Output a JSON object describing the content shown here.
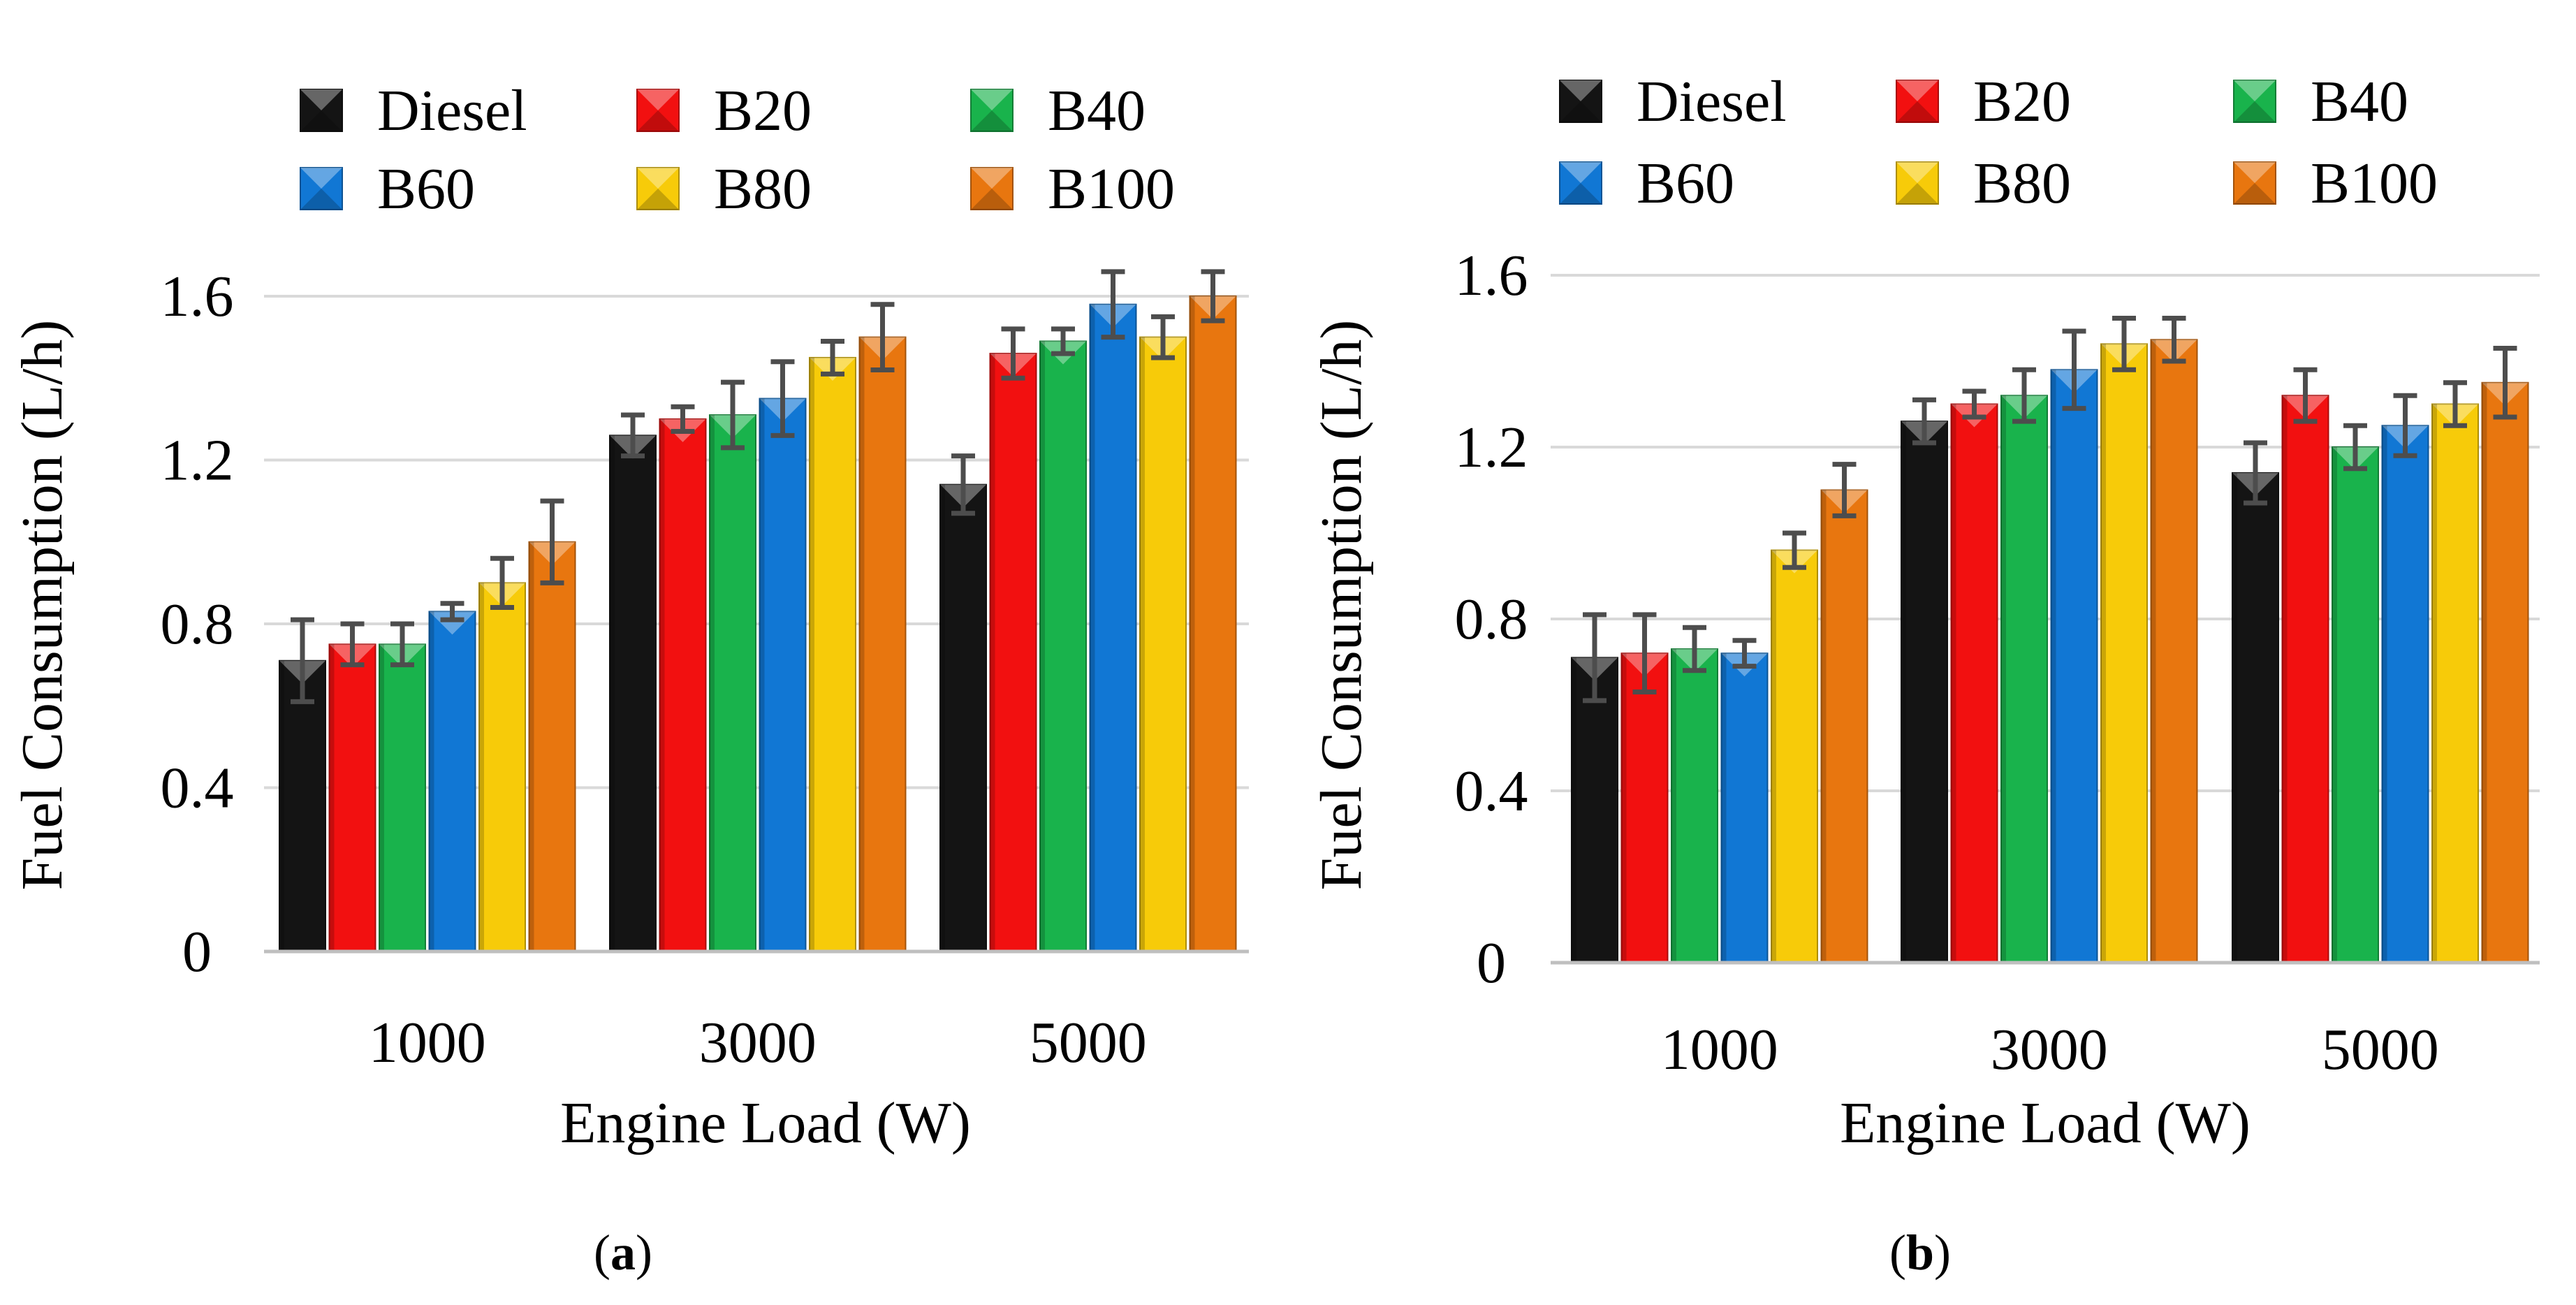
{
  "colors": {
    "Diesel": "#141414",
    "B20": "#f21010",
    "B40": "#19b34c",
    "B60": "#1177d4",
    "B80": "#f7cb09",
    "B100": "#e8760f",
    "grid": "#d9d9d9",
    "axis": "#bfbfbf",
    "errorbar": "#4d4d4d"
  },
  "chart_data": [
    {
      "type": "bar",
      "panel": "a",
      "caption_letter": "a",
      "title": "",
      "xlabel": "Engine Load (W)",
      "ylabel": "Fuel Consumption (L/h)",
      "ylim": [
        0,
        1.6
      ],
      "yticks": [
        "0",
        "0.4",
        "0.8",
        "1.2",
        "1.6"
      ],
      "ytick_values": [
        0,
        0.4,
        0.8,
        1.2,
        1.6
      ],
      "grid": true,
      "legend_position": "top",
      "categories": [
        "1000",
        "3000",
        "5000"
      ],
      "series": [
        {
          "name": "Diesel",
          "values": [
            0.71,
            1.26,
            1.14
          ],
          "errors": [
            0.1,
            0.05,
            0.07
          ]
        },
        {
          "name": "B20",
          "values": [
            0.75,
            1.3,
            1.46
          ],
          "errors": [
            0.05,
            0.03,
            0.06
          ]
        },
        {
          "name": "B40",
          "values": [
            0.75,
            1.31,
            1.49
          ],
          "errors": [
            0.05,
            0.08,
            0.03
          ]
        },
        {
          "name": "B60",
          "values": [
            0.83,
            1.35,
            1.58
          ],
          "errors": [
            0.02,
            0.09,
            0.08
          ]
        },
        {
          "name": "B80",
          "values": [
            0.9,
            1.45,
            1.5
          ],
          "errors": [
            0.06,
            0.04,
            0.05
          ]
        },
        {
          "name": "B100",
          "values": [
            1.0,
            1.5,
            1.6
          ],
          "errors": [
            0.1,
            0.08,
            0.06
          ]
        }
      ]
    },
    {
      "type": "bar",
      "panel": "b",
      "caption_letter": "b",
      "title": "",
      "xlabel": "Engine Load (W)",
      "ylabel": "Fuel Consumption (L/h)",
      "ylim": [
        0,
        1.6
      ],
      "yticks": [
        "0",
        "0.4",
        "0.8",
        "1.2",
        "1.6"
      ],
      "ytick_values": [
        0,
        0.4,
        0.8,
        1.2,
        1.6
      ],
      "grid": true,
      "legend_position": "top",
      "categories": [
        "1000",
        "3000",
        "5000"
      ],
      "series": [
        {
          "name": "Diesel",
          "values": [
            0.71,
            1.26,
            1.14
          ],
          "errors": [
            0.1,
            0.05,
            0.07
          ]
        },
        {
          "name": "B20",
          "values": [
            0.72,
            1.3,
            1.32
          ],
          "errors": [
            0.09,
            0.03,
            0.06
          ]
        },
        {
          "name": "B40",
          "values": [
            0.73,
            1.32,
            1.2
          ],
          "errors": [
            0.05,
            0.06,
            0.05
          ]
        },
        {
          "name": "B60",
          "values": [
            0.72,
            1.38,
            1.25
          ],
          "errors": [
            0.03,
            0.09,
            0.07
          ]
        },
        {
          "name": "B80",
          "values": [
            0.96,
            1.44,
            1.3
          ],
          "errors": [
            0.04,
            0.06,
            0.05
          ]
        },
        {
          "name": "B100",
          "values": [
            1.1,
            1.45,
            1.35
          ],
          "errors": [
            0.06,
            0.05,
            0.08
          ]
        }
      ]
    }
  ]
}
